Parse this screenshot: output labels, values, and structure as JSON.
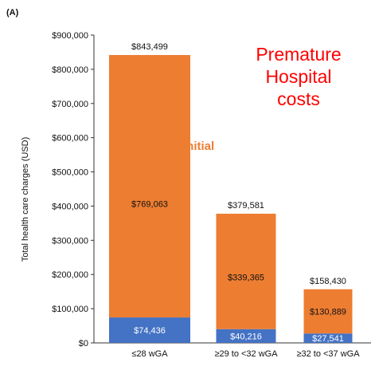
{
  "chart_data": {
    "type": "bar",
    "stacked": true,
    "panel_label": "(A)",
    "title": "Premature Hospital costs",
    "annotation": "initial",
    "ylabel": "Total health care charges (USD)",
    "ylim": [
      0,
      900000
    ],
    "y_ticks": [
      0,
      100000,
      200000,
      300000,
      400000,
      500000,
      600000,
      700000,
      800000,
      900000
    ],
    "y_tick_labels": [
      "$0",
      "$100,000",
      "$200,000",
      "$300,000",
      "$400,000",
      "$500,000",
      "$600,000",
      "$700,000",
      "$800,000",
      "$900,000"
    ],
    "categories": [
      "≤28 wGA",
      "≥29 to <32 wGA",
      "≥32 to <37 wGA"
    ],
    "series": [
      {
        "color": "#4472c4",
        "values": [
          74436,
          40216,
          27541
        ],
        "labels": [
          "$74,436",
          "$40,216",
          "$27,541"
        ]
      },
      {
        "color": "#ed7d31",
        "values": [
          769063,
          339365,
          130889
        ],
        "labels": [
          "$769,063",
          "$339,365",
          "$130,889"
        ]
      }
    ],
    "totals": [
      843499,
      379581,
      158430
    ],
    "total_labels": [
      "$843,499",
      "$379,581",
      "$158,430"
    ],
    "title_color": "#ff0000",
    "annotation_color": "#ed7d31",
    "grid": false
  }
}
